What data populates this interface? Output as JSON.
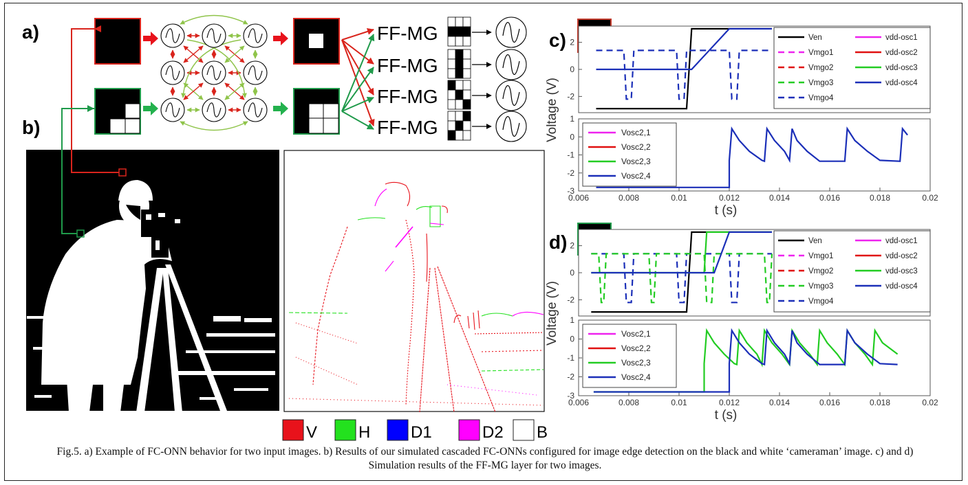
{
  "figure": {
    "panel_labels": {
      "a": "a)",
      "b": "b)",
      "c": "c)",
      "d": "d)"
    },
    "ffmg_label": "FF-MG",
    "legend_colors": {
      "V": "#e8121b",
      "H": "#23e11e",
      "D1": "#0000ff",
      "D2": "#ff00ff",
      "B": "#ffffff"
    },
    "edge_legend": [
      {
        "label": "V",
        "color": "#e8121b"
      },
      {
        "label": "H",
        "color": "#23e11e"
      },
      {
        "label": "D1",
        "color": "#0000ff"
      },
      {
        "label": "D2",
        "color": "#ff00ff"
      },
      {
        "label": "B",
        "color": "#ffffff"
      }
    ],
    "caption": "Fig.5. a) Example of FC-ONN behavior for two input images. b) Results of our simulated cascaded FC-ONNs configured for image edge detection on the black and white ‘cameraman’ image. c) and d) Simulation results of the FF-MG layer for two images."
  },
  "chart_data": [
    {
      "type": "line",
      "panel": "c) top",
      "ylim": [
        -3.2,
        3.2
      ],
      "yticks": [
        2,
        0,
        -2
      ],
      "x": [
        0.0067,
        0.0078,
        0.0079,
        0.0081,
        0.0082,
        0.0099,
        0.01,
        0.0102,
        0.0103,
        0.0105,
        0.012,
        0.0121,
        0.0123,
        0.0124,
        0.0137
      ],
      "series": [
        {
          "name": "Ven",
          "color": "#000000",
          "dash": false,
          "values": [
            -2.9,
            -2.9,
            -2.9,
            -2.9,
            -2.9,
            -2.9,
            -2.9,
            -2.9,
            -2.9,
            3.0,
            3.0,
            3.0,
            3.0,
            3.0,
            3.0
          ]
        },
        {
          "name": "Vmgo4",
          "color": "#1b2fb8",
          "dash": true,
          "values": [
            1.4,
            1.4,
            -2.2,
            -2.2,
            1.4,
            1.4,
            -2.2,
            -2.2,
            1.4,
            1.4,
            1.4,
            -2.2,
            -2.2,
            1.4,
            1.4
          ]
        },
        {
          "name": "vdd-osc4",
          "color": "#1b2fb8",
          "dash": false,
          "values": [
            0,
            0,
            0,
            0,
            0,
            0,
            0,
            0,
            0,
            0,
            3.0,
            3.0,
            3.0,
            3.0,
            3.0
          ]
        }
      ],
      "legend": [
        {
          "name": "Ven",
          "color": "#000000",
          "dash": false
        },
        {
          "name": "Vmgo1",
          "color": "#ee22ee",
          "dash": true
        },
        {
          "name": "Vmgo2",
          "color": "#e01010",
          "dash": true
        },
        {
          "name": "Vmgo3",
          "color": "#22cc22",
          "dash": true
        },
        {
          "name": "Vmgo4",
          "color": "#1b2fb8",
          "dash": true
        },
        {
          "name": "vdd-osc1",
          "color": "#ee22ee",
          "dash": false
        },
        {
          "name": "vdd-osc2",
          "color": "#e01010",
          "dash": false
        },
        {
          "name": "vdd-osc3",
          "color": "#22cc22",
          "dash": false
        },
        {
          "name": "vdd-osc4",
          "color": "#1b2fb8",
          "dash": false
        }
      ]
    },
    {
      "type": "line",
      "panel": "c) bottom",
      "xlim": [
        0.006,
        0.02
      ],
      "ylim": [
        -3,
        1
      ],
      "xticks": [
        "0.006",
        "0.008",
        "0.01",
        "0.012",
        "0.014",
        "0.016",
        "0.018",
        "0.02"
      ],
      "yticks": [
        "1",
        "0",
        "-1",
        "-2",
        "-3"
      ],
      "xlabel": "t (s)",
      "ylabel": "Voltage (V)",
      "x": [
        0.0067,
        0.012,
        0.012,
        0.0121,
        0.0124,
        0.0128,
        0.0133,
        0.0134,
        0.0135,
        0.0138,
        0.0142,
        0.0144,
        0.0145,
        0.0147,
        0.0151,
        0.0156,
        0.0166,
        0.0167,
        0.017,
        0.0175,
        0.018,
        0.0188,
        0.0189,
        0.0191
      ],
      "series": [
        {
          "name": "Vosc2,4",
          "color": "#1b2fb8",
          "values": [
            -2.8,
            -2.8,
            -1.3,
            0.45,
            -0.2,
            -0.8,
            -1.3,
            -1.35,
            0.45,
            -0.2,
            -0.8,
            -1.3,
            0.45,
            -0.2,
            -0.8,
            -1.35,
            -1.35,
            0.45,
            -0.2,
            -0.8,
            -1.3,
            -1.35,
            0.45,
            0.1
          ]
        }
      ],
      "legend": [
        {
          "name": "Vosc2,1",
          "color": "#ee22ee"
        },
        {
          "name": "Vosc2,2",
          "color": "#e01010"
        },
        {
          "name": "Vosc2,3",
          "color": "#22cc22"
        },
        {
          "name": "Vosc2,4",
          "color": "#1b2fb8"
        }
      ]
    },
    {
      "type": "line",
      "panel": "d) top",
      "ylim": [
        -3.2,
        3.2
      ],
      "yticks": [
        2,
        0,
        -2
      ],
      "x": [
        0.0065,
        0.0068,
        0.0069,
        0.007,
        0.0071,
        0.0078,
        0.0079,
        0.0081,
        0.0082,
        0.0088,
        0.0089,
        0.009,
        0.0091,
        0.0099,
        0.01,
        0.0102,
        0.0103,
        0.0105,
        0.011,
        0.0111,
        0.0113,
        0.0114,
        0.012,
        0.0121,
        0.0123,
        0.0124,
        0.0134,
        0.0135,
        0.0136,
        0.0137
      ],
      "series": [
        {
          "name": "Ven",
          "color": "#000000",
          "dash": false,
          "values": [
            -2.9,
            -2.9,
            -2.9,
            -2.9,
            -2.9,
            -2.9,
            -2.9,
            -2.9,
            -2.9,
            -2.9,
            -2.9,
            -2.9,
            -2.9,
            -2.9,
            -2.9,
            -2.9,
            -2.9,
            3.0,
            3.0,
            3.0,
            3.0,
            3.0,
            3.0,
            3.0,
            3.0,
            3.0,
            3.0,
            3.0,
            3.0,
            3.0
          ]
        },
        {
          "name": "Vmgo4",
          "color": "#1b2fb8",
          "dash": true,
          "values": [
            1.4,
            1.4,
            1.4,
            1.4,
            1.4,
            1.4,
            -2.2,
            -2.2,
            1.4,
            1.4,
            1.4,
            1.4,
            1.4,
            1.4,
            -2.2,
            -2.2,
            1.4,
            1.4,
            1.4,
            1.4,
            1.4,
            1.4,
            1.4,
            -2.2,
            -2.2,
            1.4,
            1.4,
            1.4,
            1.4,
            1.4
          ]
        },
        {
          "name": "Vmgo3",
          "color": "#22cc22",
          "dash": true,
          "values": [
            1.4,
            1.4,
            -2.2,
            -2.2,
            1.4,
            1.4,
            1.4,
            1.4,
            1.4,
            1.4,
            -2.2,
            -2.2,
            1.4,
            1.4,
            1.4,
            1.4,
            1.4,
            1.4,
            1.4,
            -2.2,
            -2.2,
            1.4,
            1.4,
            1.4,
            1.4,
            1.4,
            1.4,
            -2.2,
            -2.2,
            1.4
          ]
        },
        {
          "name": "vdd-osc3",
          "color": "#22cc22",
          "dash": false,
          "values": [
            0,
            0,
            0,
            0,
            0,
            0,
            0,
            0,
            0,
            0,
            0,
            0,
            0,
            0,
            0,
            0,
            0,
            0,
            0,
            3.0,
            3.0,
            3.0,
            3.0,
            3.0,
            3.0,
            3.0,
            3.0,
            3.0,
            3.0,
            3.0
          ]
        },
        {
          "name": "vdd-osc4",
          "color": "#1b2fb8",
          "dash": false,
          "values": [
            0,
            0,
            0,
            0,
            0,
            0,
            0,
            0,
            0,
            0,
            0,
            0,
            0,
            0,
            0,
            0,
            0,
            0,
            0,
            0,
            0,
            0,
            3.0,
            3.0,
            3.0,
            3.0,
            3.0,
            3.0,
            3.0,
            3.0
          ]
        }
      ],
      "legend": [
        {
          "name": "Ven",
          "color": "#000000",
          "dash": false
        },
        {
          "name": "Vmgo1",
          "color": "#ee22ee",
          "dash": true
        },
        {
          "name": "Vmgo2",
          "color": "#e01010",
          "dash": true
        },
        {
          "name": "Vmgo3",
          "color": "#22cc22",
          "dash": true
        },
        {
          "name": "Vmgo4",
          "color": "#1b2fb8",
          "dash": true
        },
        {
          "name": "vdd-osc1",
          "color": "#ee22ee",
          "dash": false
        },
        {
          "name": "vdd-osc2",
          "color": "#e01010",
          "dash": false
        },
        {
          "name": "vdd-osc3",
          "color": "#22cc22",
          "dash": false
        },
        {
          "name": "vdd-osc4",
          "color": "#1b2fb8",
          "dash": false
        }
      ]
    },
    {
      "type": "line",
      "panel": "d) bottom",
      "xlim": [
        0.006,
        0.02
      ],
      "ylim": [
        -3,
        1
      ],
      "xticks": [
        "0.006",
        "0.008",
        "0.01",
        "0.012",
        "0.014",
        "0.016",
        "0.018",
        "0.02"
      ],
      "yticks": [
        "1",
        "0",
        "-1",
        "-2",
        "-3"
      ],
      "xlabel": "t (s)",
      "ylabel": "Voltage (V)",
      "series": [
        {
          "name": "Vosc2,3",
          "color": "#22cc22",
          "x": [
            0.0066,
            0.011,
            0.011,
            0.0111,
            0.0114,
            0.0118,
            0.0122,
            0.0123,
            0.0124,
            0.0127,
            0.0131,
            0.0133,
            0.0134,
            0.0137,
            0.0141,
            0.0144,
            0.0145,
            0.0148,
            0.0152,
            0.0155,
            0.0156,
            0.0159,
            0.0163,
            0.0166,
            0.0167,
            0.017,
            0.0174,
            0.0177,
            0.0178,
            0.0181,
            0.0187
          ],
          "values": [
            -2.8,
            -2.8,
            -1.3,
            0.45,
            -0.2,
            -0.8,
            -1.3,
            -1.35,
            0.45,
            -0.2,
            -0.8,
            -1.35,
            0.45,
            -0.2,
            -0.8,
            -1.35,
            0.45,
            -0.2,
            -0.8,
            -1.35,
            0.45,
            -0.2,
            -0.8,
            -1.35,
            0.45,
            -0.2,
            -0.8,
            -1.35,
            0.45,
            -0.2,
            -0.8
          ]
        },
        {
          "name": "Vosc2,4",
          "color": "#1b2fb8",
          "x": [
            0.0066,
            0.012,
            0.012,
            0.0121,
            0.0124,
            0.0128,
            0.0133,
            0.0134,
            0.0135,
            0.0138,
            0.0142,
            0.0144,
            0.0145,
            0.0147,
            0.0151,
            0.0156,
            0.0166,
            0.0167,
            0.017,
            0.0175,
            0.018,
            0.0187
          ],
          "values": [
            -2.8,
            -2.8,
            -1.3,
            0.45,
            -0.2,
            -0.8,
            -1.3,
            -1.35,
            0.45,
            -0.2,
            -0.8,
            -1.3,
            0.45,
            -0.2,
            -0.8,
            -1.35,
            -1.35,
            0.45,
            -0.2,
            -0.8,
            -1.3,
            -1.35
          ]
        }
      ],
      "legend": [
        {
          "name": "Vosc2,1",
          "color": "#ee22ee"
        },
        {
          "name": "Vosc2,2",
          "color": "#e01010"
        },
        {
          "name": "Vosc2,3",
          "color": "#22cc22"
        },
        {
          "name": "Vosc2,4",
          "color": "#1b2fb8"
        }
      ]
    }
  ]
}
